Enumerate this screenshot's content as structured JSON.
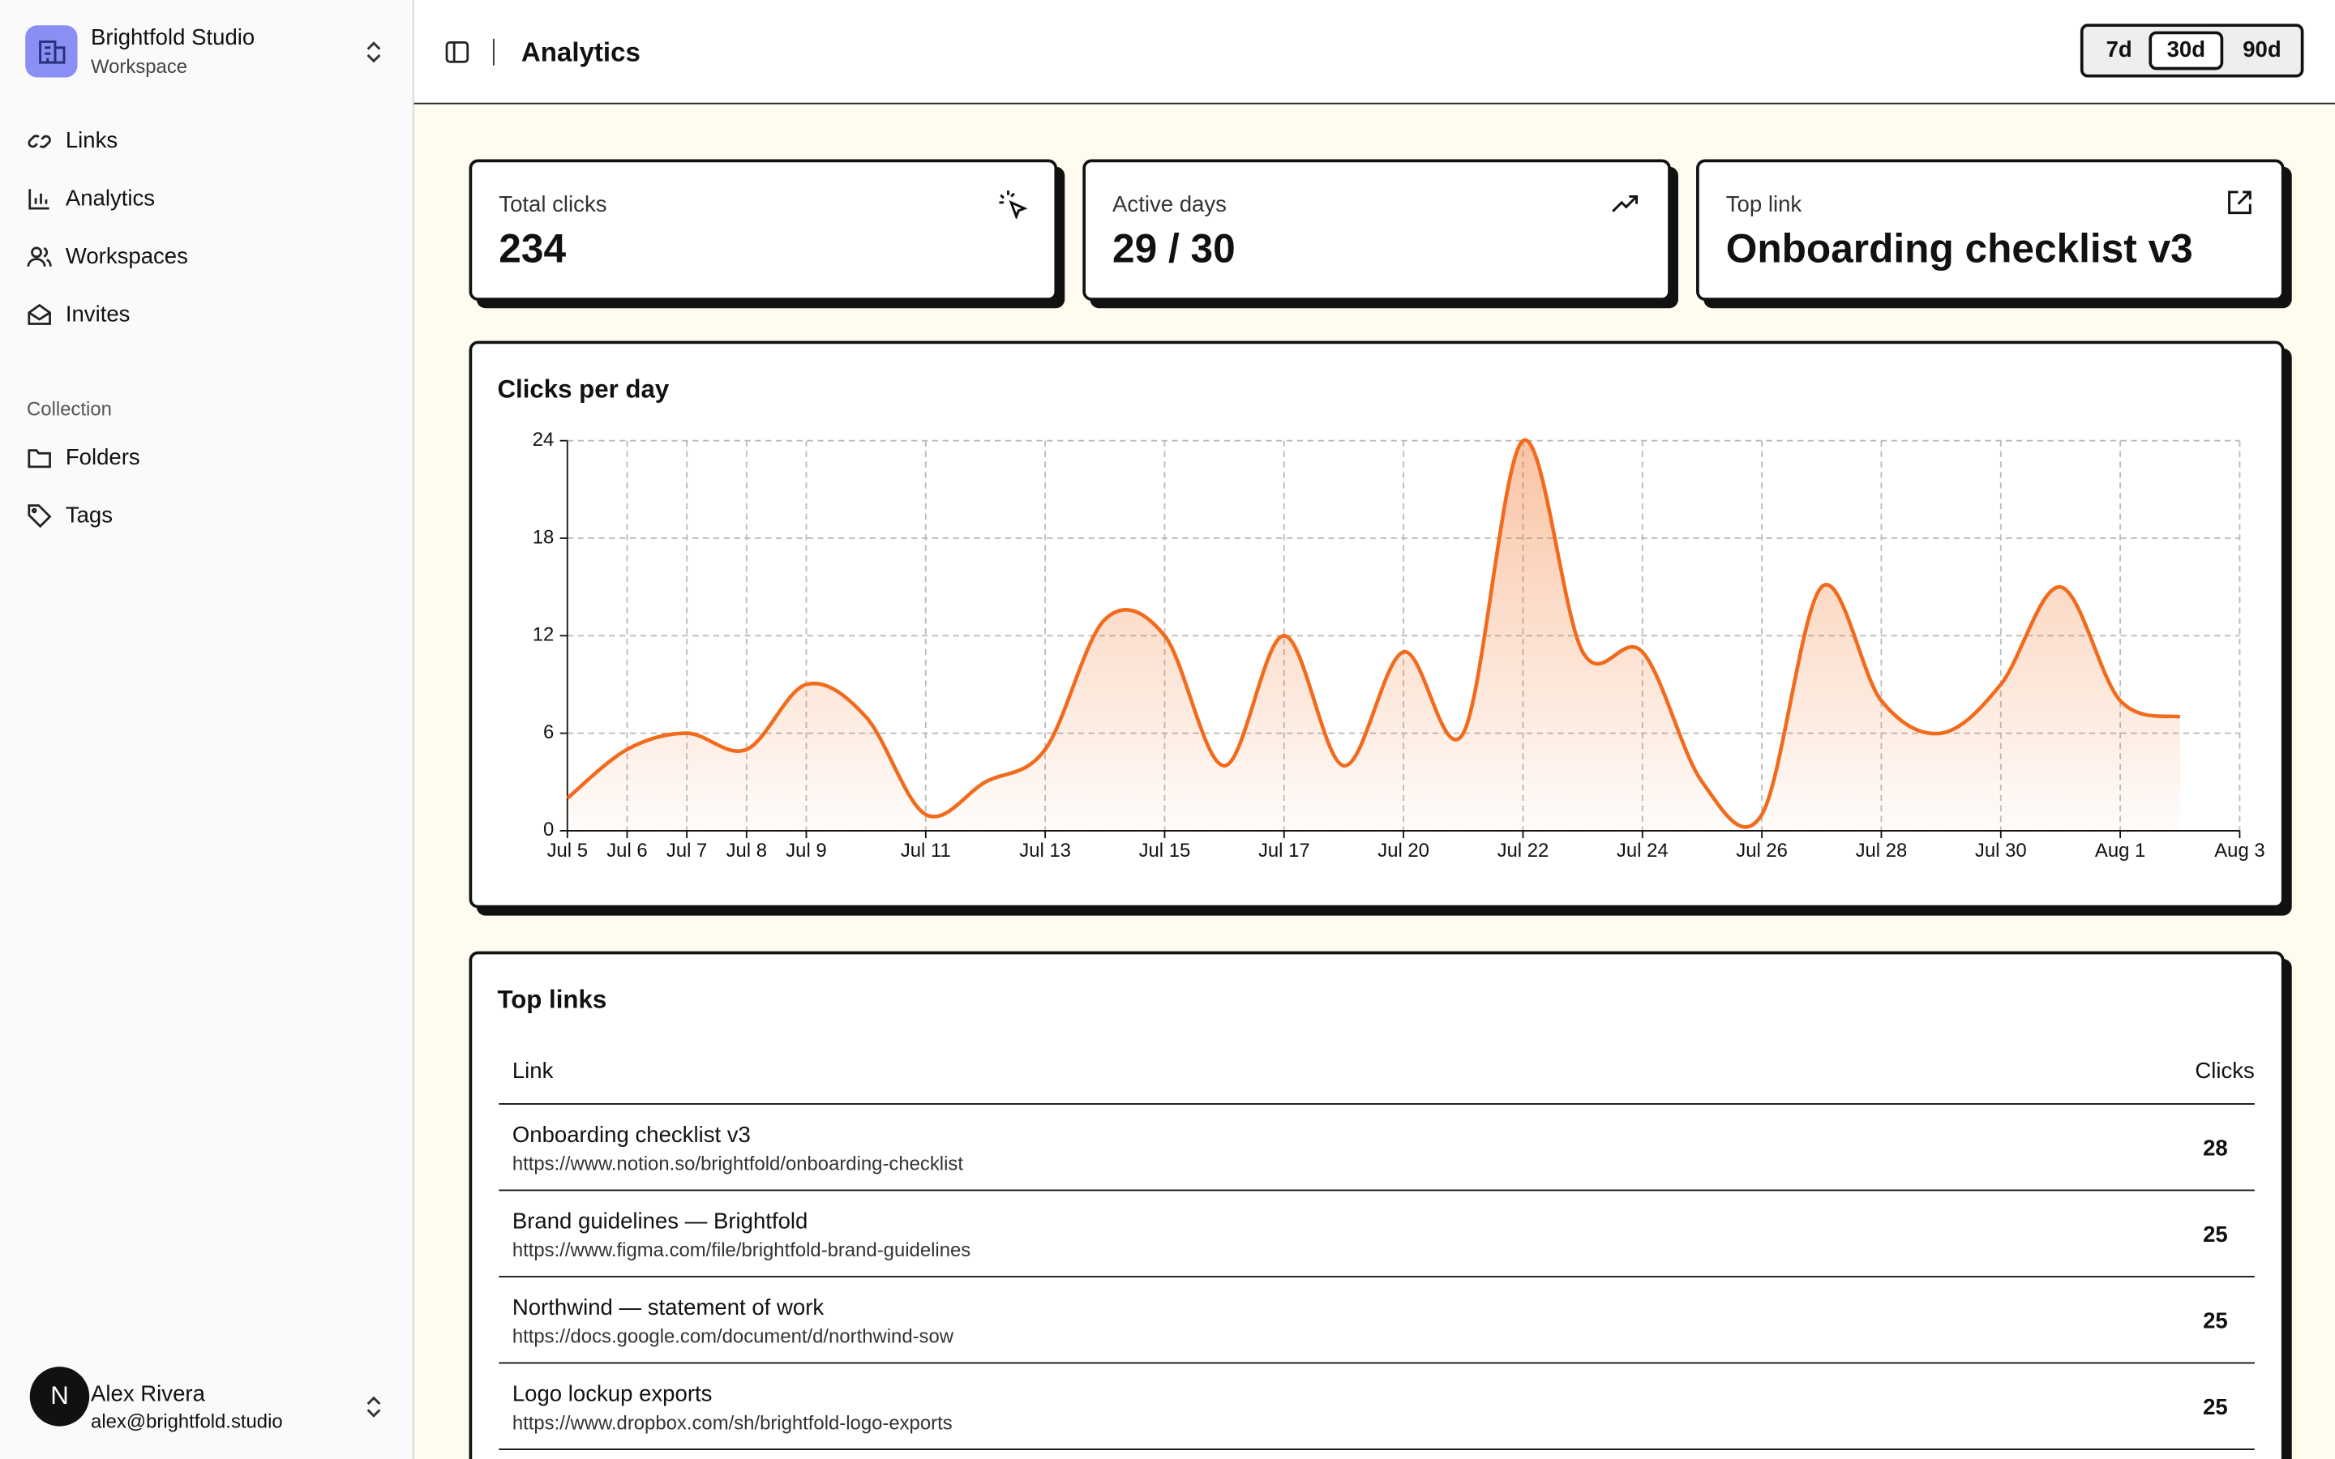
{
  "sidebar": {
    "workspace": {
      "name": "Brightfold Studio",
      "subtitle": "Workspace"
    },
    "nav": [
      "Links",
      "Analytics",
      "Workspaces",
      "Invites"
    ],
    "section": "Collection",
    "collection": [
      "Folders",
      "Tags"
    ],
    "user": {
      "avatar": "N",
      "name": "Alex Rivera",
      "email": "alex@brightfold.studio"
    }
  },
  "header": {
    "title": "Analytics",
    "ranges": [
      "7d",
      "30d",
      "90d"
    ],
    "active_range": 1
  },
  "stats": [
    {
      "label": "Total clicks",
      "value": "234"
    },
    {
      "label": "Active days",
      "value": "29 / 30"
    },
    {
      "label": "Top link",
      "value": "Onboarding checklist v3"
    }
  ],
  "chart_data": {
    "type": "line",
    "title": "Clicks per day",
    "categories": [
      "Jul 5",
      "Jul 6",
      "Jul 7",
      "Jul 8",
      "Jul 9",
      null,
      "Jul 11",
      null,
      "Jul 13",
      null,
      "Jul 15",
      null,
      "Jul 17",
      null,
      "Jul 20",
      null,
      "Jul 22",
      null,
      "Jul 24",
      null,
      "Jul 26",
      null,
      "Jul 28",
      null,
      "Jul 30",
      null,
      "Aug 1",
      null,
      "Aug 3"
    ],
    "values": [
      2,
      5,
      6,
      5,
      9,
      7,
      1,
      3,
      5,
      13,
      12,
      4,
      12,
      4,
      11,
      6,
      24,
      11,
      11,
      3,
      1,
      15,
      8,
      6,
      9,
      15,
      8,
      7,
      null
    ],
    "color": "#f26b1d",
    "ylim": [
      0,
      24
    ],
    "yticks": [
      0,
      6,
      12,
      18,
      24
    ],
    "grid": true
  },
  "table": {
    "title": "Top links",
    "columns": [
      "Link",
      "Clicks"
    ],
    "rows": [
      {
        "title": "Onboarding checklist v3",
        "url": "https://www.notion.so/brightfold/onboarding-checklist",
        "clicks": "28"
      },
      {
        "title": "Brand guidelines — Brightfold",
        "url": "https://www.figma.com/file/brightfold-brand-guidelines",
        "clicks": "25"
      },
      {
        "title": "Northwind — statement of work",
        "url": "https://docs.google.com/document/d/northwind-sow",
        "clicks": "25"
      },
      {
        "title": "Logo lockup exports",
        "url": "https://www.dropbox.com/sh/brightfold-logo-exports",
        "clicks": "25"
      }
    ]
  }
}
